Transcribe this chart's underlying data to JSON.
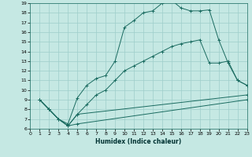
{
  "xlabel": "Humidex (Indice chaleur)",
  "xlim": [
    0,
    23
  ],
  "ylim": [
    6,
    19
  ],
  "xticks": [
    0,
    1,
    2,
    3,
    4,
    5,
    6,
    7,
    8,
    9,
    10,
    11,
    12,
    13,
    14,
    15,
    16,
    17,
    18,
    19,
    20,
    21,
    22,
    23
  ],
  "yticks": [
    6,
    7,
    8,
    9,
    10,
    11,
    12,
    13,
    14,
    15,
    16,
    17,
    18,
    19
  ],
  "bg_color": "#c5e8e3",
  "grid_color": "#9ececa",
  "line_color": "#1a6b60",
  "lines": [
    {
      "x": [
        1,
        2,
        3,
        4,
        5,
        6,
        7,
        8,
        9,
        10,
        11,
        12,
        13,
        14,
        15,
        16,
        17,
        18,
        19,
        20,
        21,
        22,
        23
      ],
      "y": [
        9.0,
        8.0,
        7.0,
        6.5,
        9.2,
        10.5,
        11.2,
        11.5,
        13.0,
        16.5,
        17.2,
        18.0,
        18.2,
        19.0,
        19.3,
        18.5,
        18.2,
        18.2,
        18.3,
        15.2,
        12.8,
        11.0,
        10.5
      ]
    },
    {
      "x": [
        1,
        2,
        3,
        4,
        5,
        6,
        7,
        8,
        9,
        10,
        11,
        12,
        13,
        14,
        15,
        16,
        17,
        18,
        19,
        20,
        21,
        22,
        23
      ],
      "y": [
        9.0,
        8.0,
        7.0,
        6.3,
        7.5,
        8.5,
        9.5,
        10.0,
        11.0,
        12.0,
        12.5,
        13.0,
        13.5,
        14.0,
        14.5,
        14.8,
        15.0,
        15.2,
        12.8,
        12.8,
        13.0,
        11.0,
        10.5
      ]
    },
    {
      "x": [
        1,
        2,
        3,
        4,
        5,
        23
      ],
      "y": [
        9.0,
        8.0,
        7.0,
        6.3,
        7.5,
        9.5
      ]
    },
    {
      "x": [
        1,
        2,
        3,
        4,
        5,
        23
      ],
      "y": [
        9.0,
        8.0,
        7.0,
        6.3,
        6.5,
        9.0
      ]
    }
  ]
}
